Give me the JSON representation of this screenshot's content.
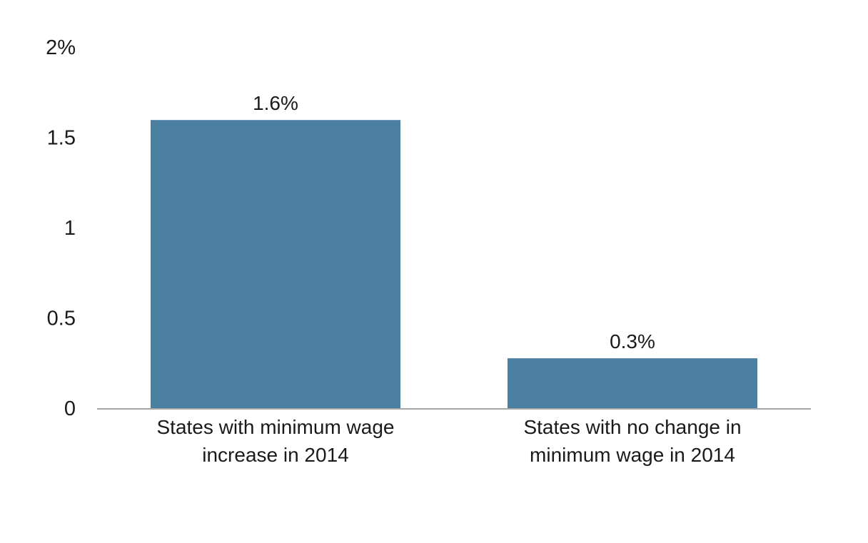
{
  "chart_data": {
    "type": "bar",
    "title": "",
    "xlabel": "",
    "ylabel": "",
    "ylim": [
      0,
      2
    ],
    "y_ticks": [
      {
        "value": 0,
        "label": "0"
      },
      {
        "value": 0.5,
        "label": "0.5"
      },
      {
        "value": 1,
        "label": "1"
      },
      {
        "value": 1.5,
        "label": "1.5"
      },
      {
        "value": 2,
        "label": "2%"
      }
    ],
    "categories": [
      [
        "States with minimum wage",
        "increase in 2014"
      ],
      [
        "States with no change in",
        "minimum wage in 2014"
      ]
    ],
    "values": [
      1.6,
      0.28
    ],
    "value_labels": [
      "1.6%",
      "0.3%"
    ],
    "grid": false,
    "bar_color": "#4a7fa1",
    "axis_color": "#a6a6a6"
  }
}
